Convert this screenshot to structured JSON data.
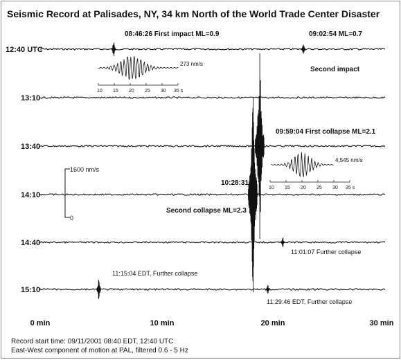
{
  "chart_data": {
    "type": "line",
    "title": "Seismic Record at Palisades, NY, 34 km North of the World Trade Center Disaster",
    "xlabel": "",
    "x_ticks": [
      {
        "value": 0,
        "label": "0 min"
      },
      {
        "value": 10,
        "label": "10 min"
      },
      {
        "value": 20,
        "label": "20 min"
      },
      {
        "value": 30,
        "label": "30 min"
      }
    ],
    "xlim": [
      0,
      30
    ],
    "rows": [
      {
        "label": "12:40 UTC"
      },
      {
        "label": "13:10"
      },
      {
        "label": "13:40"
      },
      {
        "label": "14:10"
      },
      {
        "label": "14:40"
      },
      {
        "label": "15:10"
      }
    ],
    "events": [
      {
        "row": 0,
        "minute": 6.4,
        "amplitude": 16,
        "text": "08:46:26 First impact ML=0.9"
      },
      {
        "row": 0,
        "minute": 22.9,
        "amplitude": 10,
        "text": "09:02:54 ML=0.7"
      },
      {
        "row": 2,
        "minute": 19.1,
        "amplitude": 140,
        "text": "09:59:04 First collapse ML=2.1"
      },
      {
        "row": 3,
        "minute": 18.5,
        "amplitude": 180,
        "text": "10:28:31"
      },
      {
        "row": 4,
        "minute": 21.1,
        "amplitude": 9,
        "text": "11:01:07 Further collapse"
      },
      {
        "row": 5,
        "minute": 5.1,
        "amplitude": 22,
        "text": "11:15:04 EDT, Further collapse"
      },
      {
        "row": 5,
        "minute": 19.8,
        "amplitude": 8,
        "text": "11:29:46 EDT, Further collapse"
      }
    ],
    "annotations": {
      "second_impact": "Second impact",
      "second_collapse": "Second collapse ML=2.3"
    },
    "insets": [
      {
        "amplitude_label": "273 nm/s",
        "ticks": [
          "10",
          "15",
          "20",
          "25",
          "30",
          "35 s"
        ]
      },
      {
        "amplitude_label": "4,545 nm/s",
        "ticks": [
          "10",
          "15",
          "20",
          "25",
          "30",
          "35 s"
        ]
      }
    ],
    "scale_bar": {
      "top_label": "1600 nm/s",
      "bottom_label": "0"
    },
    "footer": [
      "Record start time: 09/11/2001 08:40 EDT, 12:40 UTC",
      "East-West component of motion at PAL, filtered 0.6 - 5 Hz"
    ],
    "grid": false,
    "legend": "none"
  }
}
